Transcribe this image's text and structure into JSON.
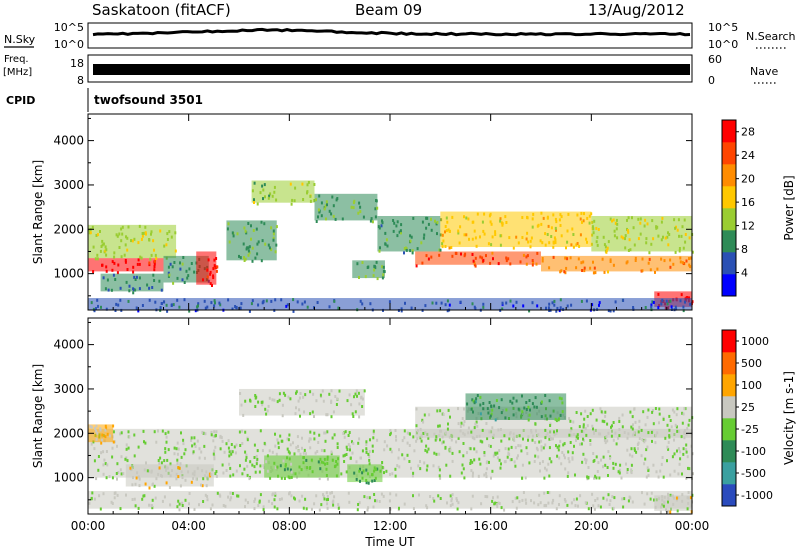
{
  "header": {
    "station": "Saskatoon (fitACF)",
    "beam": "Beam 09",
    "date": "13/Aug/2012"
  },
  "summary_panels": {
    "nsky_label": "N.Sky",
    "nsearch_label": "N.Search",
    "count_ticks": [
      "10^5",
      "10^0"
    ],
    "freq_label_line1": "Freq.",
    "freq_label_line2": "[MHz]",
    "freq_ticks": [
      "18",
      "8"
    ],
    "nave_label": "Nave",
    "nave_ticks": [
      "60",
      "0"
    ],
    "cpid_label": "CPID",
    "cpid_value": "twofsound 3501"
  },
  "chart_data": [
    {
      "type": "heatmap",
      "title": "",
      "xlabel": "",
      "ylabel": "Slant Range [km]",
      "xlim": [
        0,
        24
      ],
      "ylim": [
        180,
        4600
      ],
      "x_ticks": [
        "00:00",
        "04:00",
        "08:00",
        "12:00",
        "16:00",
        "20:00",
        "00:00"
      ],
      "y_ticks": [
        "1000",
        "2000",
        "3000",
        "4000"
      ],
      "colorbar": {
        "label": "Power [dB]",
        "range": [
          0,
          30
        ],
        "ticks": [
          "4",
          "8",
          "12",
          "16",
          "20",
          "24",
          "28"
        ],
        "colors": [
          "#0000ff",
          "#2a50b4",
          "#2e8b57",
          "#9acd32",
          "#ffc800",
          "#ff8c00",
          "#ff4500",
          "#ff0000"
        ]
      },
      "regions": [
        {
          "t": [
            0.0,
            3.0
          ],
          "r": [
            1050,
            1350
          ],
          "value": 28
        },
        {
          "t": [
            0.0,
            3.5
          ],
          "r": [
            1350,
            2100
          ],
          "value": 14
        },
        {
          "t": [
            0.5,
            3.0
          ],
          "r": [
            600,
            1000
          ],
          "value": 8
        },
        {
          "t": [
            3.0,
            4.8
          ],
          "r": [
            800,
            1400
          ],
          "value": 9
        },
        {
          "t": [
            4.3,
            5.1
          ],
          "r": [
            750,
            1500
          ],
          "value": 27
        },
        {
          "t": [
            5.5,
            7.5
          ],
          "r": [
            1300,
            2200
          ],
          "value": 11
        },
        {
          "t": [
            6.5,
            9.0
          ],
          "r": [
            2600,
            3100
          ],
          "value": 13
        },
        {
          "t": [
            9.0,
            11.5
          ],
          "r": [
            2200,
            2800
          ],
          "value": 10
        },
        {
          "t": [
            10.5,
            11.8
          ],
          "r": [
            900,
            1300
          ],
          "value": 11
        },
        {
          "t": [
            11.5,
            14.0
          ],
          "r": [
            1500,
            2300
          ],
          "value": 10
        },
        {
          "t": [
            13.0,
            18.0
          ],
          "r": [
            1200,
            1500
          ],
          "value": 24
        },
        {
          "t": [
            14.0,
            20.0
          ],
          "r": [
            1600,
            2400
          ],
          "value": 17
        },
        {
          "t": [
            18.0,
            24.0
          ],
          "r": [
            1050,
            1400
          ],
          "value": 21
        },
        {
          "t": [
            20.0,
            24.0
          ],
          "r": [
            1500,
            2300
          ],
          "value": 14
        },
        {
          "t": [
            22.5,
            24.0
          ],
          "r": [
            250,
            600
          ],
          "value": 29
        },
        {
          "t": [
            0.0,
            24.0
          ],
          "r": [
            180,
            450
          ],
          "value": 6
        }
      ]
    },
    {
      "type": "heatmap",
      "title": "",
      "xlabel": "Time UT",
      "ylabel": "Slant Range [km]",
      "xlim": [
        0,
        24
      ],
      "ylim": [
        180,
        4600
      ],
      "x_ticks": [
        "00:00",
        "04:00",
        "08:00",
        "12:00",
        "16:00",
        "20:00",
        "00:00"
      ],
      "y_ticks": [
        "1000",
        "2000",
        "3000",
        "4000"
      ],
      "colorbar": {
        "label": "Velocity [m s-1]",
        "range": [
          -1200,
          1200
        ],
        "ticks": [
          "1000",
          "500",
          "100",
          "25",
          "-25",
          "-100",
          "-500",
          "-1000"
        ],
        "colors": [
          "#2a4bbd",
          "#3aa0a0",
          "#2e8b57",
          "#66cc33",
          "#c8c8c0",
          "#ffa500",
          "#ff6a00",
          "#ff0000"
        ]
      },
      "regions": [
        {
          "t": [
            0.0,
            24.0
          ],
          "r": [
            1000,
            2100
          ],
          "value": 0
        },
        {
          "t": [
            6.0,
            11.0
          ],
          "r": [
            2400,
            3000
          ],
          "value": 0
        },
        {
          "t": [
            13.0,
            24.0
          ],
          "r": [
            1900,
            2600
          ],
          "value": 0
        },
        {
          "t": [
            0.0,
            1.0
          ],
          "r": [
            1800,
            2200
          ],
          "value": 300
        },
        {
          "t": [
            1.5,
            5.0
          ],
          "r": [
            800,
            1300
          ],
          "value": 200
        },
        {
          "t": [
            0.0,
            24.0
          ],
          "r": [
            300,
            700
          ],
          "value": 80
        },
        {
          "t": [
            10.3,
            11.7
          ],
          "r": [
            900,
            1300
          ],
          "value": -300
        },
        {
          "t": [
            15.0,
            19.0
          ],
          "r": [
            2300,
            2900
          ],
          "value": -400
        },
        {
          "t": [
            7.0,
            10.0
          ],
          "r": [
            1000,
            1500
          ],
          "value": -150
        },
        {
          "t": [
            22.5,
            24.0
          ],
          "r": [
            250,
            600
          ],
          "value": 150
        }
      ]
    }
  ]
}
